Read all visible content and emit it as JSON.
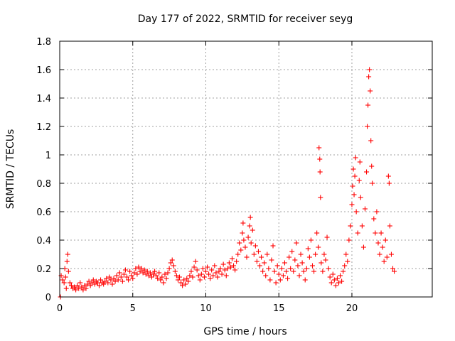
{
  "chart_data": {
    "type": "scatter",
    "title": "Day 177 of 2022, SRMTID for receiver seyg",
    "xlabel": "GPS time / hours",
    "ylabel": "SRMTID / TECUs",
    "xlim": [
      0,
      25.5
    ],
    "ylim": [
      0,
      1.8
    ],
    "xticks": [
      0,
      5,
      10,
      15,
      20
    ],
    "xtick_labels": [
      "0",
      "5",
      "10",
      "15",
      "20"
    ],
    "yticks": [
      0,
      0.2,
      0.4,
      0.6,
      0.8,
      1,
      1.2,
      1.4,
      1.6,
      1.8
    ],
    "ytick_labels": [
      "0",
      "0.2",
      "0.4",
      "0.6",
      "0.8",
      "1",
      "1.2",
      "1.4",
      "1.6",
      "1.8"
    ],
    "grid": true,
    "marker": "plus",
    "marker_color": "#ff0000",
    "series": [
      {
        "name": "SRMTID",
        "points": [
          [
            0.05,
            0.0
          ],
          [
            0.1,
            0.15
          ],
          [
            0.2,
            0.12
          ],
          [
            0.3,
            0.1
          ],
          [
            0.35,
            0.2
          ],
          [
            0.4,
            0.14
          ],
          [
            0.45,
            0.06
          ],
          [
            0.5,
            0.25
          ],
          [
            0.55,
            0.3
          ],
          [
            0.6,
            0.18
          ],
          [
            0.7,
            0.1
          ],
          [
            0.8,
            0.08
          ],
          [
            0.9,
            0.06
          ],
          [
            1.0,
            0.07
          ],
          [
            1.1,
            0.05
          ],
          [
            1.2,
            0.08
          ],
          [
            1.3,
            0.06
          ],
          [
            1.4,
            0.1
          ],
          [
            1.5,
            0.07
          ],
          [
            1.6,
            0.05
          ],
          [
            1.7,
            0.08
          ],
          [
            1.8,
            0.06
          ],
          [
            1.9,
            0.09
          ],
          [
            2.0,
            0.11
          ],
          [
            2.1,
            0.08
          ],
          [
            2.2,
            0.1
          ],
          [
            2.3,
            0.12
          ],
          [
            2.4,
            0.09
          ],
          [
            2.5,
            0.11
          ],
          [
            2.6,
            0.1
          ],
          [
            2.7,
            0.08
          ],
          [
            2.8,
            0.12
          ],
          [
            2.9,
            0.1
          ],
          [
            3.0,
            0.09
          ],
          [
            3.1,
            0.11
          ],
          [
            3.2,
            0.13
          ],
          [
            3.3,
            0.1
          ],
          [
            3.4,
            0.14
          ],
          [
            3.5,
            0.12
          ],
          [
            3.6,
            0.09
          ],
          [
            3.7,
            0.13
          ],
          [
            3.8,
            0.11
          ],
          [
            3.9,
            0.15
          ],
          [
            4.0,
            0.12
          ],
          [
            4.1,
            0.17
          ],
          [
            4.2,
            0.14
          ],
          [
            4.3,
            0.11
          ],
          [
            4.4,
            0.16
          ],
          [
            4.5,
            0.19
          ],
          [
            4.6,
            0.14
          ],
          [
            4.7,
            0.12
          ],
          [
            4.8,
            0.18
          ],
          [
            4.9,
            0.15
          ],
          [
            5.0,
            0.13
          ],
          [
            5.1,
            0.17
          ],
          [
            5.2,
            0.2
          ],
          [
            5.3,
            0.16
          ],
          [
            5.4,
            0.21
          ],
          [
            5.5,
            0.18
          ],
          [
            5.6,
            0.2
          ],
          [
            5.7,
            0.17
          ],
          [
            5.8,
            0.19
          ],
          [
            5.9,
            0.16
          ],
          [
            6.0,
            0.18
          ],
          [
            6.1,
            0.15
          ],
          [
            6.2,
            0.17
          ],
          [
            6.3,
            0.14
          ],
          [
            6.4,
            0.16
          ],
          [
            6.5,
            0.18
          ],
          [
            6.6,
            0.15
          ],
          [
            6.7,
            0.13
          ],
          [
            6.8,
            0.17
          ],
          [
            6.9,
            0.12
          ],
          [
            7.0,
            0.14
          ],
          [
            7.1,
            0.1
          ],
          [
            7.2,
            0.16
          ],
          [
            7.3,
            0.13
          ],
          [
            7.4,
            0.17
          ],
          [
            7.5,
            0.2
          ],
          [
            7.6,
            0.24
          ],
          [
            7.7,
            0.26
          ],
          [
            7.8,
            0.22
          ],
          [
            7.9,
            0.18
          ],
          [
            8.0,
            0.15
          ],
          [
            8.1,
            0.12
          ],
          [
            8.2,
            0.14
          ],
          [
            8.3,
            0.1
          ],
          [
            8.4,
            0.08
          ],
          [
            8.5,
            0.12
          ],
          [
            8.6,
            0.09
          ],
          [
            8.7,
            0.13
          ],
          [
            8.8,
            0.11
          ],
          [
            8.9,
            0.15
          ],
          [
            9.0,
            0.18
          ],
          [
            9.1,
            0.14
          ],
          [
            9.2,
            0.21
          ],
          [
            9.3,
            0.25
          ],
          [
            9.4,
            0.19
          ],
          [
            9.5,
            0.15
          ],
          [
            9.6,
            0.12
          ],
          [
            9.7,
            0.16
          ],
          [
            9.8,
            0.2
          ],
          [
            9.9,
            0.14
          ],
          [
            10.0,
            0.18
          ],
          [
            10.1,
            0.21
          ],
          [
            10.2,
            0.16
          ],
          [
            10.3,
            0.13
          ],
          [
            10.4,
            0.19
          ],
          [
            10.5,
            0.15
          ],
          [
            10.6,
            0.22
          ],
          [
            10.7,
            0.17
          ],
          [
            10.8,
            0.14
          ],
          [
            10.9,
            0.18
          ],
          [
            11.0,
            0.2
          ],
          [
            11.1,
            0.16
          ],
          [
            11.2,
            0.23
          ],
          [
            11.3,
            0.19
          ],
          [
            11.4,
            0.15
          ],
          [
            11.5,
            0.2
          ],
          [
            11.6,
            0.24
          ],
          [
            11.7,
            0.21
          ],
          [
            11.8,
            0.27
          ],
          [
            11.9,
            0.22
          ],
          [
            12.0,
            0.19
          ],
          [
            12.1,
            0.25
          ],
          [
            12.2,
            0.3
          ],
          [
            12.3,
            0.38
          ],
          [
            12.4,
            0.33
          ],
          [
            12.5,
            0.45
          ],
          [
            12.55,
            0.52
          ],
          [
            12.6,
            0.4
          ],
          [
            12.7,
            0.35
          ],
          [
            12.8,
            0.28
          ],
          [
            12.9,
            0.42
          ],
          [
            13.0,
            0.5
          ],
          [
            13.05,
            0.56
          ],
          [
            13.1,
            0.38
          ],
          [
            13.2,
            0.47
          ],
          [
            13.3,
            0.3
          ],
          [
            13.4,
            0.36
          ],
          [
            13.5,
            0.25
          ],
          [
            13.6,
            0.32
          ],
          [
            13.7,
            0.22
          ],
          [
            13.8,
            0.28
          ],
          [
            13.9,
            0.18
          ],
          [
            14.0,
            0.24
          ],
          [
            14.1,
            0.15
          ],
          [
            14.2,
            0.3
          ],
          [
            14.3,
            0.2
          ],
          [
            14.4,
            0.12
          ],
          [
            14.5,
            0.26
          ],
          [
            14.6,
            0.36
          ],
          [
            14.7,
            0.18
          ],
          [
            14.8,
            0.1
          ],
          [
            14.9,
            0.22
          ],
          [
            15.0,
            0.16
          ],
          [
            15.1,
            0.12
          ],
          [
            15.2,
            0.2
          ],
          [
            15.3,
            0.15
          ],
          [
            15.4,
            0.24
          ],
          [
            15.5,
            0.18
          ],
          [
            15.6,
            0.13
          ],
          [
            15.7,
            0.28
          ],
          [
            15.8,
            0.2
          ],
          [
            15.9,
            0.32
          ],
          [
            16.0,
            0.18
          ],
          [
            16.1,
            0.26
          ],
          [
            16.2,
            0.38
          ],
          [
            16.3,
            0.22
          ],
          [
            16.4,
            0.15
          ],
          [
            16.5,
            0.3
          ],
          [
            16.6,
            0.24
          ],
          [
            16.7,
            0.18
          ],
          [
            16.8,
            0.12
          ],
          [
            16.9,
            0.2
          ],
          [
            17.0,
            0.34
          ],
          [
            17.1,
            0.28
          ],
          [
            17.2,
            0.4
          ],
          [
            17.3,
            0.22
          ],
          [
            17.4,
            0.18
          ],
          [
            17.5,
            0.3
          ],
          [
            17.6,
            0.45
          ],
          [
            17.7,
            0.35
          ],
          [
            17.75,
            1.05
          ],
          [
            17.8,
            0.97
          ],
          [
            17.82,
            0.88
          ],
          [
            17.85,
            0.7
          ],
          [
            17.9,
            0.24
          ],
          [
            18.0,
            0.18
          ],
          [
            18.1,
            0.3
          ],
          [
            18.2,
            0.26
          ],
          [
            18.3,
            0.42
          ],
          [
            18.4,
            0.2
          ],
          [
            18.5,
            0.14
          ],
          [
            18.6,
            0.1
          ],
          [
            18.7,
            0.16
          ],
          [
            18.8,
            0.12
          ],
          [
            18.9,
            0.08
          ],
          [
            19.0,
            0.13
          ],
          [
            19.1,
            0.1
          ],
          [
            19.2,
            0.15
          ],
          [
            19.3,
            0.11
          ],
          [
            19.4,
            0.18
          ],
          [
            19.5,
            0.22
          ],
          [
            19.6,
            0.3
          ],
          [
            19.7,
            0.25
          ],
          [
            19.8,
            0.4
          ],
          [
            19.9,
            0.5
          ],
          [
            20.0,
            0.65
          ],
          [
            20.05,
            0.78
          ],
          [
            20.1,
            0.9
          ],
          [
            20.15,
            0.72
          ],
          [
            20.2,
            0.85
          ],
          [
            20.25,
            0.98
          ],
          [
            20.3,
            0.6
          ],
          [
            20.4,
            0.45
          ],
          [
            20.5,
            0.82
          ],
          [
            20.55,
            0.95
          ],
          [
            20.6,
            0.7
          ],
          [
            20.7,
            0.5
          ],
          [
            20.8,
            0.35
          ],
          [
            20.9,
            0.62
          ],
          [
            21.0,
            0.88
          ],
          [
            21.05,
            1.2
          ],
          [
            21.1,
            1.35
          ],
          [
            21.15,
            1.55
          ],
          [
            21.2,
            1.6
          ],
          [
            21.25,
            1.45
          ],
          [
            21.3,
            1.1
          ],
          [
            21.35,
            0.92
          ],
          [
            21.4,
            0.8
          ],
          [
            21.5,
            0.55
          ],
          [
            21.6,
            0.45
          ],
          [
            21.7,
            0.6
          ],
          [
            21.8,
            0.38
          ],
          [
            21.9,
            0.3
          ],
          [
            22.0,
            0.45
          ],
          [
            22.1,
            0.35
          ],
          [
            22.2,
            0.25
          ],
          [
            22.3,
            0.4
          ],
          [
            22.4,
            0.28
          ],
          [
            22.5,
            0.85
          ],
          [
            22.55,
            0.8
          ],
          [
            22.6,
            0.5
          ],
          [
            22.7,
            0.3
          ],
          [
            22.8,
            0.2
          ],
          [
            22.9,
            0.18
          ]
        ]
      }
    ]
  }
}
